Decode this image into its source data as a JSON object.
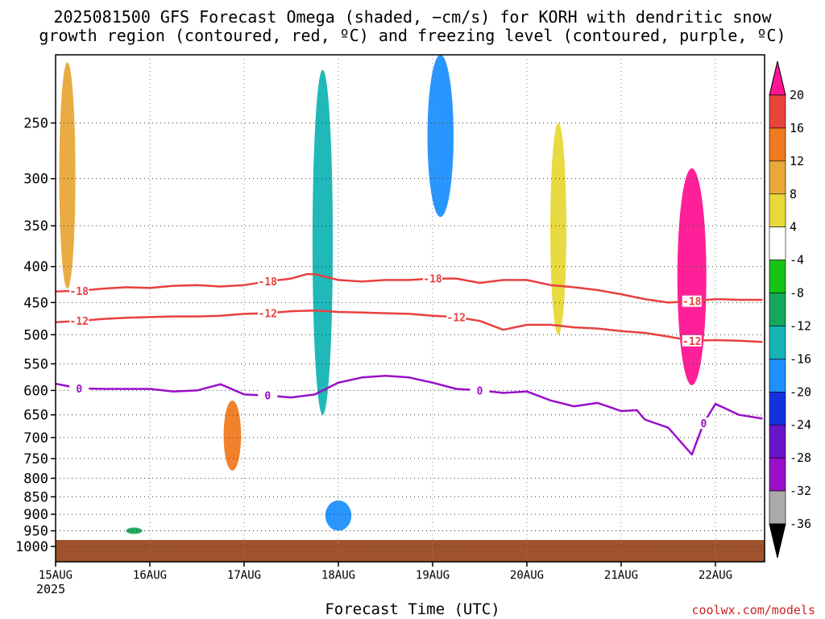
{
  "title": {
    "line1": "2025081500 GFS Forecast Omega (shaded, −cm/s) for KORH with dendritic snow",
    "line2": "growth region (contoured, red, ºC) and freezing level (contoured, purple, ºC)"
  },
  "xlabel": "Forecast Time (UTC)",
  "year": "2025",
  "credit": "coolwx.com/models",
  "colors": {
    "freezing_line": "#9a0fc8",
    "dgz_line": "#e84040",
    "ground": "#a0522d",
    "grid": "#888888"
  },
  "chart_data": {
    "type": "heatmap",
    "title": "2025081500 GFS Forecast Omega (shaded, −cm/s) for KORH with dendritic snow growth region (contoured, red, ºC) and freezing level (contoured, purple, ºC)",
    "xlabel": "Forecast Time (UTC)",
    "ylabel": "",
    "y_axis": "pressure (hPa), inverted, log scale",
    "yticks": [
      250,
      300,
      350,
      400,
      450,
      500,
      550,
      600,
      650,
      700,
      750,
      800,
      850,
      900,
      950,
      1000
    ],
    "ylim": [
      1000,
      200
    ],
    "xticks": [
      "15AUG",
      "16AUG",
      "17AUG",
      "18AUG",
      "19AUG",
      "20AUG",
      "21AUG",
      "22AUG"
    ],
    "xlim_hours": [
      0,
      180
    ],
    "grid": true,
    "colorbar": {
      "levels": [
        20,
        16,
        12,
        8,
        4,
        -4,
        -8,
        -12,
        -16,
        -20,
        -24,
        -28,
        -32,
        -36
      ],
      "colors": [
        "#ff1493",
        "#e8443a",
        "#f07a20",
        "#e8a838",
        "#e8d838",
        "#ffffff",
        "#16c416",
        "#14a85c",
        "#14b4b4",
        "#1e90ff",
        "#1432dc",
        "#6a14c8",
        "#9a0fc8",
        "#aaaaaa",
        "#000000"
      ]
    },
    "contours": [
      {
        "label": "-18",
        "color": "#e84040",
        "hours": [
          0,
          6,
          12,
          18,
          24,
          30,
          36,
          42,
          48,
          54,
          60,
          64,
          66,
          72,
          78,
          84,
          90,
          96,
          102,
          108,
          114,
          120,
          126,
          132,
          138,
          144,
          150,
          156,
          162,
          168,
          174,
          180
        ],
        "p": [
          434,
          433,
          430,
          428,
          429,
          426,
          425,
          427,
          425,
          420,
          416,
          410,
          410,
          418,
          420,
          418,
          418,
          416,
          416,
          422,
          418,
          418,
          425,
          428,
          432,
          438,
          445,
          450,
          448,
          445,
          446,
          446
        ]
      },
      {
        "label": "-12",
        "color": "#e84040",
        "hours": [
          0,
          6,
          12,
          18,
          24,
          30,
          36,
          42,
          48,
          54,
          60,
          66,
          72,
          78,
          84,
          90,
          96,
          102,
          108,
          114,
          120,
          126,
          132,
          138,
          144,
          150,
          156,
          162,
          168,
          174,
          180
        ],
        "p": [
          480,
          478,
          475,
          473,
          472,
          471,
          471,
          470,
          467,
          466,
          463,
          462,
          464,
          465,
          466,
          467,
          470,
          472,
          478,
          492,
          484,
          484,
          488,
          490,
          494,
          497,
          503,
          510,
          509,
          510,
          512
        ]
      },
      {
        "label": "0",
        "color": "#9a0fc8",
        "hours": [
          0,
          6,
          12,
          18,
          24,
          30,
          36,
          42,
          48,
          54,
          60,
          66,
          72,
          78,
          84,
          90,
          96,
          102,
          108,
          114,
          120,
          126,
          132,
          138,
          144,
          148,
          150,
          156,
          162,
          165,
          168,
          174,
          180
        ],
        "p": [
          587,
          596,
          597,
          597,
          597,
          602,
          600,
          588,
          608,
          610,
          614,
          608,
          585,
          575,
          572,
          575,
          585,
          597,
          600,
          605,
          602,
          620,
          632,
          625,
          642,
          640,
          660,
          678,
          740,
          668,
          627,
          650,
          658
        ]
      }
    ],
    "omega_regions": [
      {
        "hour": 3,
        "p_top": 205,
        "p_bot": 430,
        "value": 10
      },
      {
        "hour": 20,
        "p_top": 940,
        "p_bot": 960,
        "value": -10
      },
      {
        "hour": 45,
        "p_top": 620,
        "p_bot": 780,
        "value": 12
      },
      {
        "hour": 68,
        "p_top": 210,
        "p_bot": 650,
        "value": -14
      },
      {
        "hour": 72,
        "p_top": 860,
        "p_bot": 950,
        "value": -18
      },
      {
        "hour": 98,
        "p_top": 200,
        "p_bot": 340,
        "value": -18
      },
      {
        "hour": 128,
        "p_top": 250,
        "p_bot": 500,
        "value": 6
      },
      {
        "hour": 162,
        "p_top": 290,
        "p_bot": 590,
        "value": 20
      }
    ]
  }
}
